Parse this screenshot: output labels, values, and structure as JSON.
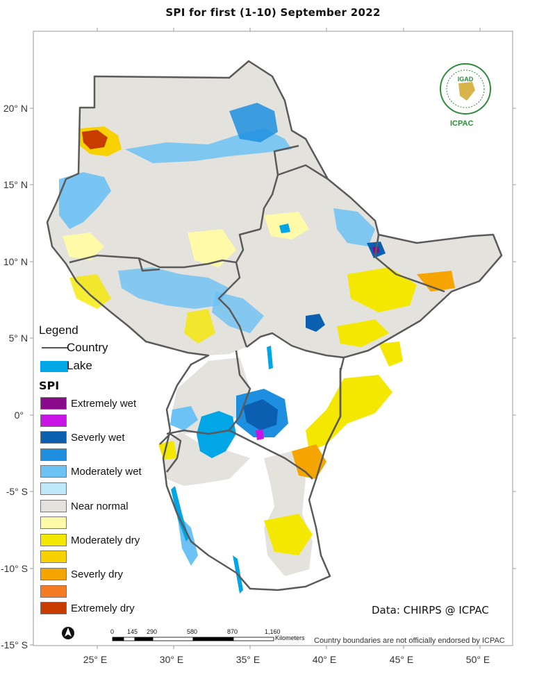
{
  "title": "SPI   for   first (1-10)  September 2022",
  "axes": {
    "lat_labels": [
      "20° N",
      "15° N",
      "10° N",
      "5° N",
      "0°",
      "-5° S",
      "-10° S",
      "-15° S"
    ],
    "lon_labels": [
      "25° E",
      "30° E",
      "35° E",
      "40° E",
      "45° E",
      "50° E"
    ]
  },
  "legend": {
    "title": "Legend",
    "country_label": "Country",
    "lake_label": "Lake",
    "spi_title": "SPI",
    "classes": [
      {
        "label": "Extremely wet",
        "color": "#8b0a8b"
      },
      {
        "label": "",
        "color": "#c814e6"
      },
      {
        "label": "Severly wet",
        "color": "#0b5fb0"
      },
      {
        "label": "",
        "color": "#1e8fe0"
      },
      {
        "label": "Moderately wet",
        "color": "#6cc2f5"
      },
      {
        "label": "",
        "color": "#bfe8fb"
      },
      {
        "label": "Near normal",
        "color": "#e4e2dc"
      },
      {
        "label": "",
        "color": "#fefaa8"
      },
      {
        "label": "Moderately dry",
        "color": "#f5e800"
      },
      {
        "label": "",
        "color": "#f7d100"
      },
      {
        "label": "Severly dry",
        "color": "#f5a400"
      },
      {
        "label": "",
        "color": "#f57a24"
      },
      {
        "label": "Extremely dry",
        "color": "#c83c00"
      }
    ]
  },
  "credit": "Data: CHIRPS @ ICPAC",
  "scale_bar": {
    "labels": [
      "0",
      "145",
      "290",
      "580",
      "870",
      "1,160"
    ],
    "unit": "Kilometers"
  },
  "boundary_note": "Country boundaries are not officially endorsed by ICPAC",
  "logo": {
    "top_text": "IGAD",
    "bottom_text": "ICPAC"
  },
  "colors": {
    "country_line": "#5a5a5a",
    "lake": "#00a6e6",
    "frame": "#9a9a9a"
  }
}
